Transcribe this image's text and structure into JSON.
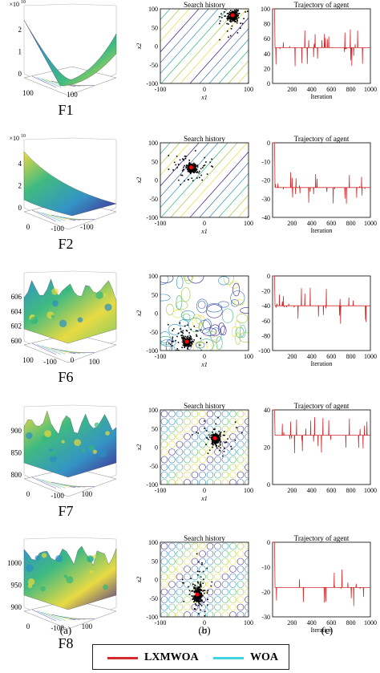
{
  "rows": [
    {
      "label": "F1",
      "surf": {
        "zmult": "×10",
        "zexp": "10",
        "zticks": [
          "2",
          "1",
          "0"
        ],
        "xticks": [
          "100",
          "100"
        ],
        "colors": [
          "#3b1f8c",
          "#2a8fc2",
          "#35b77a",
          "#e8d93a"
        ]
      },
      "history": {
        "title": "Search history",
        "xlabel": "x1",
        "ylabel": "x2",
        "xticks": [
          "-100",
          "0",
          "100"
        ],
        "yticks": [
          "100",
          "50",
          "0",
          "-50",
          "-100"
        ],
        "contour": "diag"
      },
      "traj": {
        "title": "Trajectory of agent",
        "xlabel": "Iteration",
        "xticks": [
          "200",
          "400",
          "600",
          "800",
          "1000"
        ],
        "yticks": [
          "100",
          "80",
          "60",
          "40",
          "20",
          "0"
        ],
        "ylim": [
          0,
          100
        ],
        "steady": 48
      }
    },
    {
      "label": "F2",
      "surf": {
        "zmult": "×10",
        "zexp": "10",
        "zticks": [
          "4",
          "2",
          "0"
        ],
        "xticks": [
          "0",
          "-100",
          "-100"
        ],
        "colors": [
          "#e8d93a",
          "#35b77a",
          "#2a8fc2",
          "#3b1f8c"
        ]
      },
      "history": {
        "title": "Search history",
        "xlabel": "x1",
        "ylabel": "x2",
        "xticks": [
          "-100",
          "0",
          "100"
        ],
        "yticks": [
          "100",
          "50",
          "0",
          "-50",
          "-100"
        ],
        "contour": "diag"
      },
      "traj": {
        "title": "Trajectory of agent",
        "xlabel": "Iteration",
        "xticks": [
          "200",
          "400",
          "600",
          "800",
          "1000"
        ],
        "yticks": [
          "0",
          "-10",
          "-20",
          "-30",
          "-40"
        ],
        "ylim": [
          -45,
          0
        ],
        "steady": -27
      }
    },
    {
      "label": "F6",
      "surf": {
        "zmult": "",
        "zexp": "",
        "zticks": [
          "606",
          "604",
          "602",
          "600"
        ],
        "xticks": [
          "100",
          "-100",
          "0",
          "100"
        ],
        "colors": [
          "#2a8fc2",
          "#35b77a",
          "#e8d93a",
          "#7bc85a"
        ]
      },
      "history": {
        "title": "",
        "xlabel": "x1",
        "ylabel": "x2",
        "xticks": [
          "-100",
          "0",
          "100"
        ],
        "yticks": [
          "100",
          "50",
          "0",
          "-50",
          "-100"
        ],
        "contour": "blob"
      },
      "traj": {
        "title": "",
        "xlabel": "Iteration",
        "xticks": [
          "200",
          "400",
          "600",
          "800",
          "1000"
        ],
        "yticks": [
          "0",
          "-20",
          "-40",
          "-60",
          "-80",
          "-100"
        ],
        "ylim": [
          -100,
          0
        ],
        "steady": -40
      }
    },
    {
      "label": "F7",
      "surf": {
        "zmult": "",
        "zexp": "",
        "zticks": [
          "900",
          "850",
          "800"
        ],
        "xticks": [
          "0",
          "-100",
          "100"
        ],
        "colors": [
          "#e8d93a",
          "#35b77a",
          "#2a8fc2",
          "#3b1f8c"
        ]
      },
      "history": {
        "title": "Search history",
        "xlabel": "x1",
        "ylabel": "x2",
        "xticks": [
          "-100",
          "0",
          "100"
        ],
        "yticks": [
          "100",
          "50",
          "0",
          "-50",
          "-100"
        ],
        "contour": "lattice"
      },
      "traj": {
        "title": "Trajectory of agent",
        "xlabel": "",
        "xticks": [
          "200",
          "400",
          "600",
          "800",
          "1000"
        ],
        "yticks": [
          "40",
          "20",
          "0"
        ],
        "ylim": [
          -5,
          45
        ],
        "steady": 28
      }
    },
    {
      "label": "F8",
      "surf": {
        "zmult": "",
        "zexp": "",
        "zticks": [
          "1000",
          "950",
          "900"
        ],
        "xticks": [
          "0",
          "-100",
          "100"
        ],
        "colors": [
          "#2a8fc2",
          "#35b77a",
          "#e8d93a",
          "#3b1f8c"
        ]
      },
      "history": {
        "title": "Search history",
        "xlabel": "x1",
        "ylabel": "x2",
        "xticks": [
          "-100",
          "0",
          "100"
        ],
        "yticks": [
          "100",
          "50",
          "0",
          "-50",
          "-100"
        ],
        "contour": "lattice"
      },
      "traj": {
        "title": "Trajectory of agent",
        "xlabel": "Iteration",
        "xticks": [
          "200",
          "400",
          "600",
          "800",
          "1000"
        ],
        "yticks": [
          "0",
          "-10",
          "-20",
          "-30"
        ],
        "ylim": [
          -33,
          0
        ],
        "steady": -20
      }
    }
  ],
  "panel_labels": [
    "(a)",
    "(b)",
    "(c)"
  ],
  "legend": {
    "items": [
      {
        "name": "LXMWOA",
        "color": "#d42a2a"
      },
      {
        "name": "WOA",
        "color": "#3dd6e0"
      }
    ]
  },
  "colors": {
    "red": "#d42a2a",
    "cyan": "#3dd6e0",
    "agent_point": "#ff0000"
  }
}
